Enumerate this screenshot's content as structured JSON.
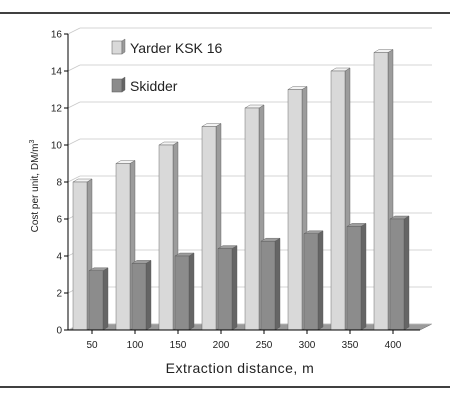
{
  "chart_data": {
    "type": "bar",
    "categories": [
      "50",
      "100",
      "150",
      "200",
      "250",
      "300",
      "350",
      "400"
    ],
    "series": [
      {
        "name": "Yarder KSK 16",
        "values": [
          8,
          9,
          10,
          11,
          12,
          13,
          14,
          15
        ],
        "color": "#d9d9d9"
      },
      {
        "name": "Skidder",
        "values": [
          3.2,
          3.6,
          4.0,
          4.4,
          4.8,
          5.2,
          5.6,
          6.0
        ],
        "color": "#8c8c8c"
      }
    ],
    "xlabel": "Extraction distance, m",
    "ylabel": "Cost per unit, DM/m",
    "ylabel_sup": "3",
    "ylim": [
      0,
      16
    ],
    "yticks": [
      "0",
      "2",
      "4",
      "6",
      "8",
      "10",
      "12",
      "14",
      "16"
    ],
    "grid": true,
    "legend_position": "top-left",
    "bar_style": "3d"
  }
}
